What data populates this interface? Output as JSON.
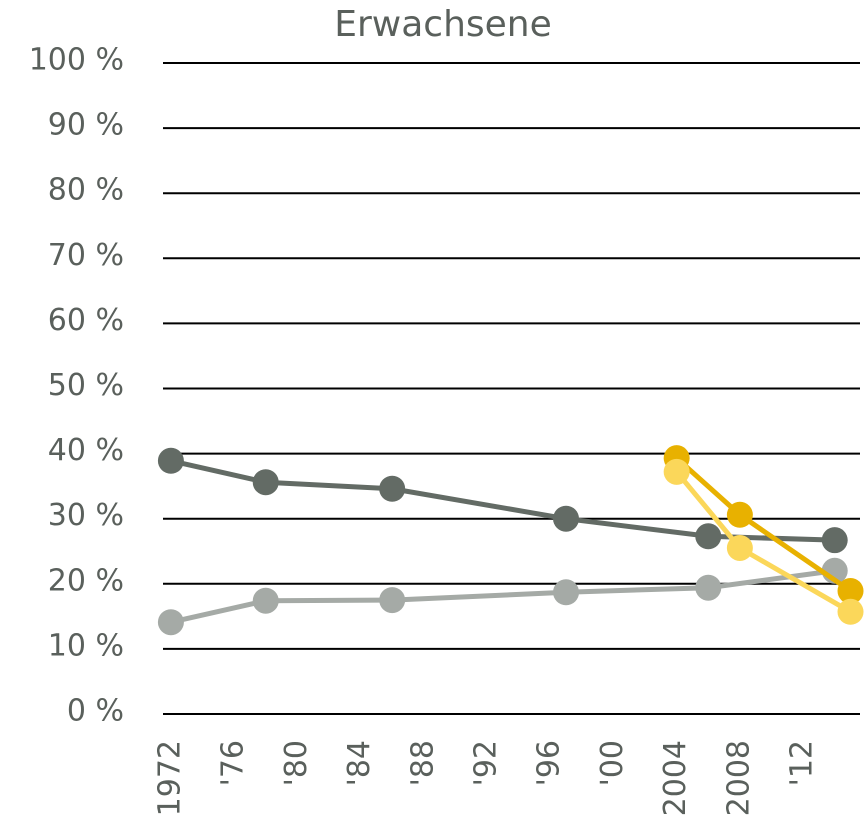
{
  "chart_data": {
    "type": "line",
    "title": "Erwachsene",
    "xlim": [
      1971.5,
      2015.6
    ],
    "xticks": [
      {
        "value": 1972,
        "label": "1972"
      },
      {
        "value": 1976,
        "label": "'76"
      },
      {
        "value": 1980,
        "label": "'80"
      },
      {
        "value": 1984,
        "label": "'84"
      },
      {
        "value": 1988,
        "label": "'88"
      },
      {
        "value": 1992,
        "label": "'92"
      },
      {
        "value": 1996,
        "label": "'96"
      },
      {
        "value": 2000,
        "label": "'00"
      },
      {
        "value": 2004,
        "label": "2004"
      },
      {
        "value": 2008,
        "label": "2008"
      },
      {
        "value": 2012,
        "label": "'12"
      }
    ],
    "ylim": [
      0,
      100
    ],
    "yticks": [
      {
        "value": 0,
        "label": "0 %"
      },
      {
        "value": 10,
        "label": "10 %"
      },
      {
        "value": 20,
        "label": "20 %"
      },
      {
        "value": 30,
        "label": "30 %"
      },
      {
        "value": 40,
        "label": "40 %"
      },
      {
        "value": 50,
        "label": "50 %"
      },
      {
        "value": 60,
        "label": "60 %"
      },
      {
        "value": 70,
        "label": "70 %"
      },
      {
        "value": 80,
        "label": "80 %"
      },
      {
        "value": 90,
        "label": "90 %"
      },
      {
        "value": 100,
        "label": "100 %"
      }
    ],
    "grid": true,
    "series": [
      {
        "color": "#636b65",
        "x": [
          1972,
          1978,
          1986,
          1997,
          2006,
          2014
        ],
        "values": [
          38.9,
          35.6,
          34.6,
          30.0,
          27.3,
          26.7
        ]
      },
      {
        "color": "#a5aaa6",
        "x": [
          1972,
          1978,
          1986,
          1997,
          2006,
          2014
        ],
        "values": [
          14.1,
          17.4,
          17.5,
          18.7,
          19.4,
          22.0
        ]
      },
      {
        "color": "#e8b100",
        "x": [
          2004,
          2008,
          2015
        ],
        "values": [
          39.3,
          30.6,
          18.9
        ]
      },
      {
        "color": "#fbd75a",
        "x": [
          2004,
          2008,
          2015
        ],
        "values": [
          37.2,
          25.5,
          15.7
        ]
      }
    ]
  }
}
